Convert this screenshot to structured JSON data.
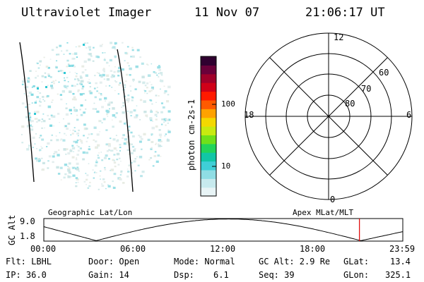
{
  "header": {
    "title": "Ultraviolet Imager",
    "date": "11 Nov 07",
    "time": "21:06:17 UT"
  },
  "colorbar": {
    "unit_label": "photon cm-2s-1",
    "tick_100": "100",
    "tick_10": "10",
    "colors": [
      "#e8f4f6",
      "#c7eaee",
      "#8fdde4",
      "#3fcfd6",
      "#11c6a6",
      "#22d45a",
      "#6fe01a",
      "#c8ea10",
      "#f4d800",
      "#ffa200",
      "#ff5a00",
      "#ff1a00",
      "#d00018",
      "#a0002a",
      "#6a003a",
      "#300030"
    ]
  },
  "polar": {
    "label_top": "12",
    "label_bottom": "0",
    "label_left": "18",
    "label_right": "6",
    "label_60": "60",
    "label_70": "70",
    "label_80": "80"
  },
  "timeline": {
    "left_title": "Geographic Lat/Lon",
    "right_title": "Apex MLat/MLT",
    "y_axis_label": "GC Alt",
    "y_top": "9.0",
    "y_bottom": "1.8",
    "ticks": [
      "00:00",
      "06:00",
      "12:00",
      "18:00",
      "23:59"
    ],
    "marker_time_hours": 21.1,
    "marker_color": "#e01010"
  },
  "status": {
    "flt": "Flt: LBHL",
    "ip": "IP: 36.0",
    "door": "Door: Open",
    "gain": "Gain: 14",
    "mode": "Mode: Normal",
    "dsp_label": "Dsp:",
    "dsp_value": "6.1",
    "gcalt": "GC Alt: 2.9 Re",
    "seq": "Seq: 39",
    "glat_label": "GLat:",
    "glat_value": "13.4",
    "glon_label": "GLon:",
    "glon_value": "325.1"
  }
}
